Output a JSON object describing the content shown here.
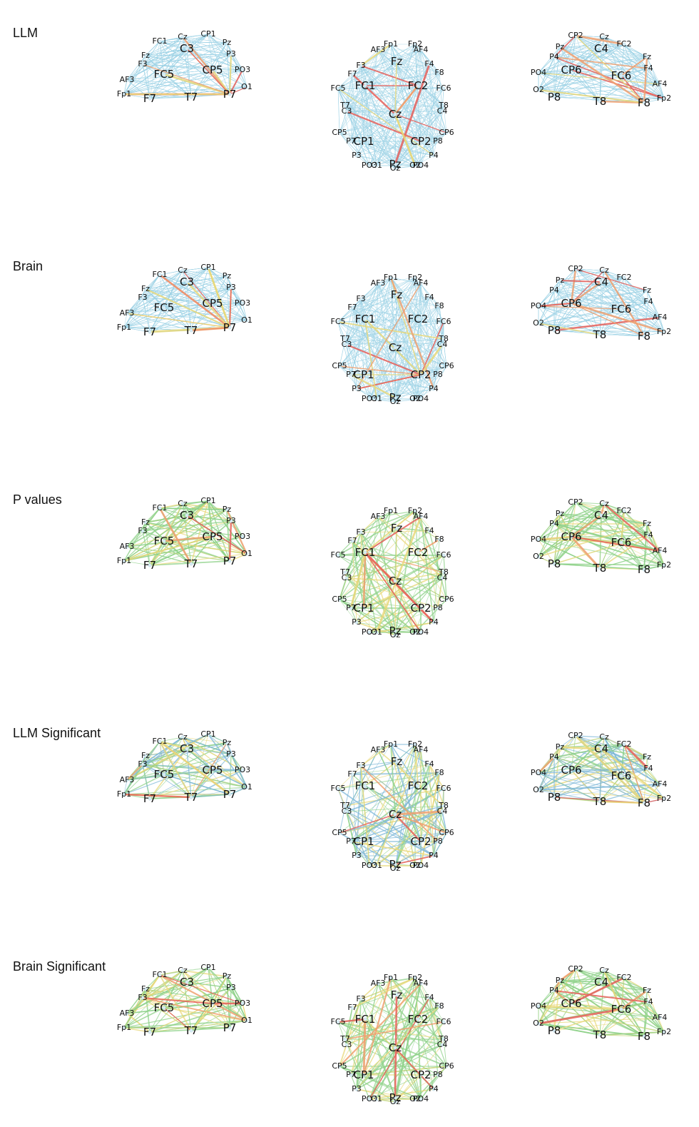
{
  "rows": [
    {
      "label": "LLM",
      "style": "dense",
      "edge_scheme": "blue-red"
    },
    {
      "label": "Brain",
      "style": "dense",
      "edge_scheme": "blue-red"
    },
    {
      "label": "P values",
      "style": "sparse",
      "edge_scheme": "green-red"
    },
    {
      "label": "LLM Significant",
      "style": "sparse",
      "edge_scheme": "blue-green-red"
    },
    {
      "label": "Brain Significant",
      "style": "sparse",
      "edge_scheme": "green-red"
    }
  ],
  "views": {
    "left_sagittal": {
      "labels": [
        "Cz",
        "CP1",
        "FC1",
        "C3",
        "Pz",
        "Fz",
        "P3",
        "F3",
        "CP5",
        "PO3",
        "AF3",
        "FC5",
        "O1",
        "Fp1",
        "F7",
        "T7",
        "P7"
      ],
      "major": [
        "C3",
        "FC5",
        "CP5",
        "T7",
        "F7",
        "P7"
      ]
    },
    "top": {
      "labels": [
        "Fp1",
        "Fp2",
        "AF3",
        "AF4",
        "Fz",
        "F3",
        "F4",
        "F7",
        "F8",
        "FC5",
        "FC1",
        "FC2",
        "FC6",
        "T7",
        "C3",
        "Cz",
        "C4",
        "T8",
        "CP5",
        "CP1",
        "CP2",
        "CP6",
        "P7",
        "P3",
        "Pz",
        "P4",
        "P8",
        "PO3",
        "O1",
        "Oz",
        "O2",
        "PO4"
      ],
      "major": [
        "Fz",
        "FC1",
        "FC2",
        "Cz",
        "CP1",
        "CP2",
        "Pz"
      ]
    },
    "right_sagittal": {
      "labels": [
        "CP2",
        "Cz",
        "Pz",
        "C4",
        "FC2",
        "P4",
        "Fz",
        "PO4",
        "CP6",
        "F4",
        "FC6",
        "O2",
        "AF4",
        "P8",
        "T8",
        "F8",
        "Fp2"
      ],
      "major": [
        "C4",
        "CP6",
        "FC6",
        "P8",
        "T8",
        "F8"
      ]
    }
  },
  "colors": {
    "dense_base": "#9fd3e6",
    "blue_edge": "#7fb8d8",
    "green_edge": "#8fd18a",
    "yellow_edge": "#e8d87a",
    "orange_edge": "#f0a070",
    "red_edge": "#e8605a",
    "node": "#d8ecf4"
  }
}
